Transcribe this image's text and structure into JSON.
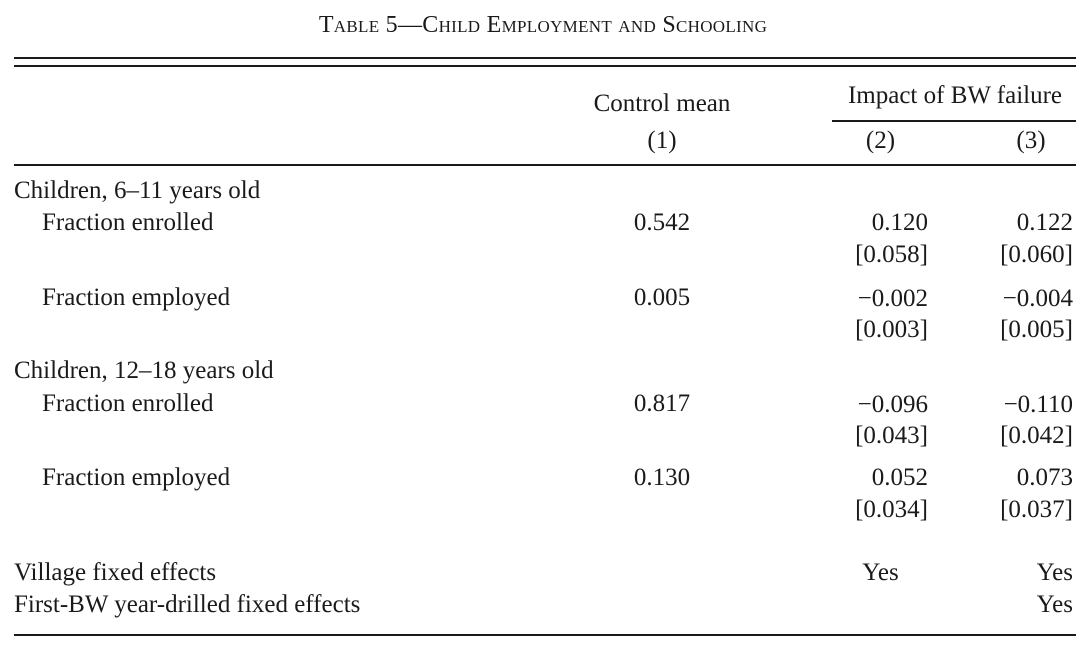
{
  "title": "Table 5—Child Employment and Schooling",
  "header": {
    "col1_label": "Control mean",
    "col1_num": "(1)",
    "group_label": "Impact of BW failure",
    "col2_num": "(2)",
    "col3_num": "(3)"
  },
  "sections": [
    {
      "label": "Children, 6–11 years old",
      "rows": [
        {
          "label": "Fraction enrolled",
          "mean": "0.542",
          "c2": "0.120",
          "c2_se": "[0.058]",
          "c3": "0.122",
          "c3_se": "[0.060]"
        },
        {
          "label": "Fraction employed",
          "mean": "0.005",
          "c2": "−0.002",
          "c2_se": "[0.003]",
          "c3": "−0.004",
          "c3_se": "[0.005]"
        }
      ]
    },
    {
      "label": "Children, 12–18 years old",
      "rows": [
        {
          "label": "Fraction enrolled",
          "mean": "0.817",
          "c2": "−0.096",
          "c2_se": "[0.043]",
          "c3": "−0.110",
          "c3_se": "[0.042]"
        },
        {
          "label": "Fraction employed",
          "mean": "0.130",
          "c2": "0.052",
          "c2_se": "[0.034]",
          "c3": "0.073",
          "c3_se": "[0.037]"
        }
      ]
    }
  ],
  "footer": [
    {
      "label": "Village fixed effects",
      "c2": "Yes",
      "c3": "Yes"
    },
    {
      "label": "First-BW year-drilled fixed effects",
      "c2": "",
      "c3": "Yes"
    }
  ]
}
